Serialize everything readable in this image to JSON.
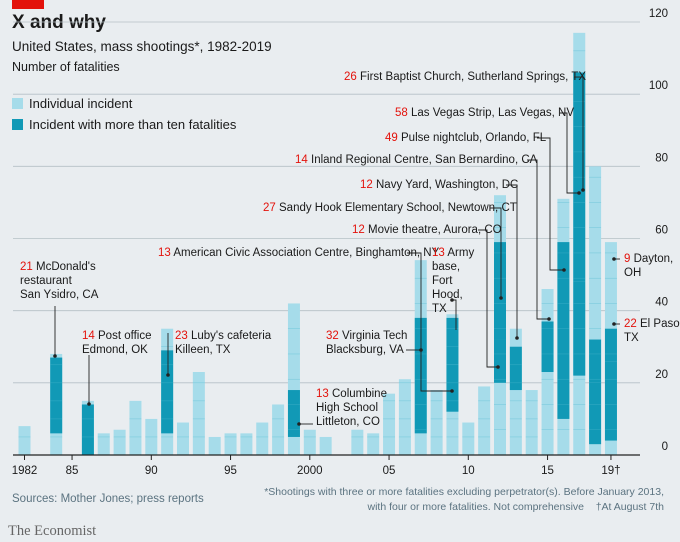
{
  "header": {
    "title": "X and why",
    "subtitle": "United States, mass shootings*, 1982-2019",
    "unit": "Number of fatalities"
  },
  "legend": [
    {
      "label": "Individual incident",
      "color": "#a6dcea"
    },
    {
      "label": "Incident with more than ten fatalities",
      "color": "#1199b6"
    }
  ],
  "footer": {
    "source": "Sources: Mother Jones; press reports",
    "note_line1": "*Shootings with three or more fatalities excluding perpetrator(s). Before January 2013,",
    "note_line2": "with four or more fatalities. Not comprehensive",
    "note_dagger": "†At August 7th",
    "brand": "The Economist"
  },
  "colors": {
    "individual": "#a6dcea",
    "major": "#1199b6",
    "accent": "#e3120b",
    "grid": "#b5c0c6",
    "segment_line": "#4fb8cf"
  },
  "chart_data": {
    "type": "bar",
    "stacked": true,
    "ylim": [
      0,
      120
    ],
    "yticks": [
      0,
      20,
      40,
      60,
      80,
      100,
      120
    ],
    "xticks": [
      {
        "year": 1982,
        "label": "1982"
      },
      {
        "year": 1985,
        "label": "85"
      },
      {
        "year": 1990,
        "label": "90"
      },
      {
        "year": 1995,
        "label": "95"
      },
      {
        "year": 2000,
        "label": "2000"
      },
      {
        "year": 2005,
        "label": "05"
      },
      {
        "year": 2010,
        "label": "10"
      },
      {
        "year": 2015,
        "label": "15"
      },
      {
        "year": 2019,
        "label": "19†"
      }
    ],
    "years": [
      {
        "year": 1982,
        "total": 8,
        "major": []
      },
      {
        "year": 1984,
        "total": 28,
        "major": [
          21
        ]
      },
      {
        "year": 1986,
        "total": 15,
        "major": [
          14
        ]
      },
      {
        "year": 1987,
        "total": 6,
        "major": []
      },
      {
        "year": 1988,
        "total": 7,
        "major": []
      },
      {
        "year": 1989,
        "total": 15,
        "major": []
      },
      {
        "year": 1990,
        "total": 10,
        "major": []
      },
      {
        "year": 1991,
        "total": 35,
        "major": [
          23
        ]
      },
      {
        "year": 1992,
        "total": 9,
        "major": []
      },
      {
        "year": 1993,
        "total": 23,
        "major": []
      },
      {
        "year": 1994,
        "total": 5,
        "major": []
      },
      {
        "year": 1995,
        "total": 6,
        "major": []
      },
      {
        "year": 1996,
        "total": 6,
        "major": []
      },
      {
        "year": 1997,
        "total": 9,
        "major": []
      },
      {
        "year": 1998,
        "total": 14,
        "major": []
      },
      {
        "year": 1999,
        "total": 42,
        "major": [
          13
        ]
      },
      {
        "year": 2000,
        "total": 7,
        "major": []
      },
      {
        "year": 2001,
        "total": 5,
        "major": []
      },
      {
        "year": 2003,
        "total": 7,
        "major": []
      },
      {
        "year": 2004,
        "total": 6,
        "major": []
      },
      {
        "year": 2005,
        "total": 17,
        "major": []
      },
      {
        "year": 2006,
        "total": 21,
        "major": []
      },
      {
        "year": 2007,
        "total": 54,
        "major": [
          32
        ]
      },
      {
        "year": 2008,
        "total": 18,
        "major": []
      },
      {
        "year": 2009,
        "total": 39,
        "major": [
          13,
          13
        ]
      },
      {
        "year": 2010,
        "total": 9,
        "major": []
      },
      {
        "year": 2011,
        "total": 19,
        "major": []
      },
      {
        "year": 2012,
        "total": 72,
        "major": [
          12,
          27
        ]
      },
      {
        "year": 2013,
        "total": 35,
        "major": [
          12
        ]
      },
      {
        "year": 2014,
        "total": 18,
        "major": []
      },
      {
        "year": 2015,
        "total": 46,
        "major": [
          14
        ]
      },
      {
        "year": 2016,
        "total": 71,
        "major": [
          49
        ]
      },
      {
        "year": 2017,
        "total": 117,
        "major": [
          26,
          58
        ]
      },
      {
        "year": 2018,
        "total": 80,
        "major": [
          17,
          12
        ]
      },
      {
        "year": 2019,
        "total": 59,
        "major": [
          22,
          9
        ]
      }
    ],
    "annotations": [
      {
        "num": "21",
        "lines": [
          "McDonald's",
          "restaurant",
          "San Ysidro, CA"
        ],
        "year": 1984
      },
      {
        "num": "14",
        "lines": [
          "Post office",
          "Edmond, OK"
        ],
        "year": 1986
      },
      {
        "num": "23",
        "lines": [
          "Luby's cafeteria",
          "Killeen, TX"
        ],
        "year": 1991
      },
      {
        "num": "13",
        "lines": [
          "Columbine",
          "High School",
          "Littleton, CO"
        ],
        "year": 1999
      },
      {
        "num": "32",
        "lines": [
          "Virginia Tech",
          "Blacksburg, VA"
        ],
        "year": 2007
      },
      {
        "num": "13",
        "lines": [
          "American Civic Association Centre, Binghamton, NY"
        ],
        "year": 2009
      },
      {
        "num": "13",
        "lines": [
          "Army",
          "base,",
          "Fort",
          "Hood,",
          "TX"
        ],
        "year": 2009
      },
      {
        "num": "12",
        "lines": [
          "Movie theatre, Aurora, CO"
        ],
        "year": 2012
      },
      {
        "num": "27",
        "lines": [
          "Sandy Hook Elementary School, Newtown, CT"
        ],
        "year": 2012
      },
      {
        "num": "12",
        "lines": [
          "Navy Yard, Washington, DC"
        ],
        "year": 2013
      },
      {
        "num": "14",
        "lines": [
          "Inland Regional Centre, San Bernardino, CA"
        ],
        "year": 2015
      },
      {
        "num": "49",
        "lines": [
          "Pulse nightclub, Orlando, FL"
        ],
        "year": 2016
      },
      {
        "num": "58",
        "lines": [
          "Las Vegas Strip, Las Vegas, NV"
        ],
        "year": 2017
      },
      {
        "num": "26",
        "lines": [
          "First Baptist Church, Sutherland Springs, TX"
        ],
        "year": 2017
      },
      {
        "num": "9",
        "lines": [
          "Dayton,",
          "OH"
        ],
        "year": 2019
      },
      {
        "num": "22",
        "lines": [
          "El Paso,",
          "TX"
        ],
        "year": 2019
      }
    ]
  }
}
